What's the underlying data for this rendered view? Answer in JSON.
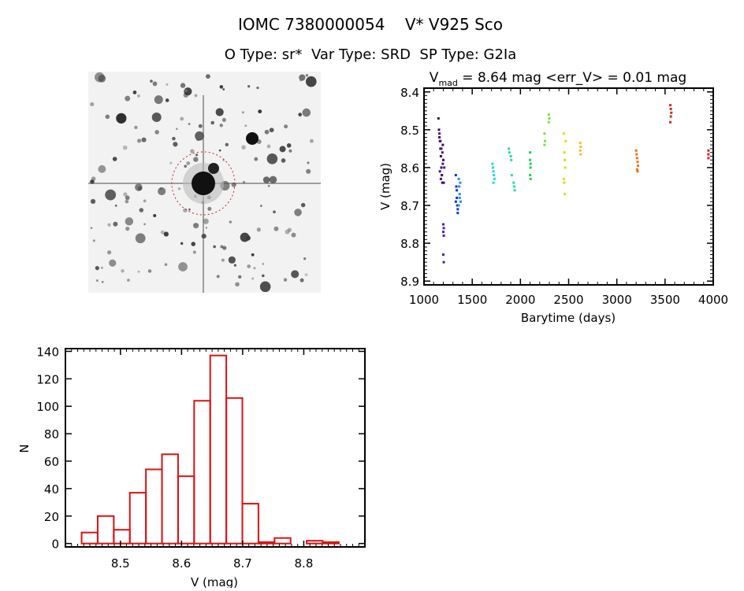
{
  "header": {
    "title": "IOMC 7380000054    V* V925 Sco",
    "subtitle": "O Type: sr*  Var Type: SRD  SP Type: G2Ia"
  },
  "image_panel": {
    "type": "star field finder image",
    "aperture_color": "#cc2222"
  },
  "chart_data": [
    {
      "type": "scatter",
      "title_main": "V",
      "title_sub": "mad",
      "title_rest": " = 8.64 mag <err_V> = 0.01 mag",
      "xlabel": "Barytime (days)",
      "ylabel": "V (mag)",
      "xlim": [
        1000,
        4000
      ],
      "ylim": [
        8.39,
        8.91
      ],
      "y_inverted": true,
      "xticks": [
        1000,
        1500,
        2000,
        2500,
        3000,
        3500,
        4000
      ],
      "yticks": [
        8.4,
        8.5,
        8.6,
        8.7,
        8.8,
        8.9
      ],
      "groups": [
        {
          "t": [
            1150,
            1155,
            1160,
            1165,
            1170,
            1175,
            1180,
            1185,
            1190,
            1195,
            1200
          ],
          "color": "#3b0a66",
          "V": [
            8.47,
            8.5,
            8.52,
            8.53,
            8.55,
            8.57,
            8.6,
            8.62,
            8.64,
            8.54,
            8.58
          ]
        },
        {
          "t": [
            1160,
            1170,
            1180,
            1190,
            1200,
            1210,
            1165,
            1175,
            1185,
            1195,
            1205
          ],
          "color": "#4a148c",
          "V": [
            8.51,
            8.53,
            8.55,
            8.56,
            8.58,
            8.6,
            8.61,
            8.63,
            8.62,
            8.59,
            8.64
          ]
        },
        {
          "t": [
            1200,
            1205,
            1200,
            1205,
            1200,
            1205
          ],
          "color": "#4a20a8",
          "V": [
            8.75,
            8.76,
            8.77,
            8.78,
            8.83,
            8.85
          ]
        },
        {
          "t": [
            1330,
            1335,
            1340,
            1345,
            1350,
            1330,
            1340,
            1350
          ],
          "color": "#1030e0",
          "V": [
            8.62,
            8.65,
            8.68,
            8.7,
            8.72,
            8.69,
            8.66,
            8.71
          ]
        },
        {
          "t": [
            1360,
            1365,
            1370,
            1375,
            1380,
            1360,
            1370
          ],
          "color": "#2090f0",
          "V": [
            8.63,
            8.65,
            8.67,
            8.64,
            8.69,
            8.7,
            8.68
          ]
        },
        {
          "t": [
            1710,
            1715,
            1720,
            1725,
            1730,
            1720
          ],
          "color": "#20d8d0",
          "V": [
            8.59,
            8.6,
            8.61,
            8.62,
            8.63,
            8.64
          ]
        },
        {
          "t": [
            1880,
            1885,
            1900,
            1905,
            1910,
            1930,
            1935,
            1940
          ],
          "color": "#20e0a0",
          "V": [
            8.55,
            8.56,
            8.57,
            8.58,
            8.62,
            8.64,
            8.65,
            8.66
          ]
        },
        {
          "t": [
            2100,
            2100,
            2105,
            2105,
            2100,
            2105
          ],
          "color": "#20d050",
          "V": [
            8.56,
            8.58,
            8.59,
            8.6,
            8.62,
            8.63
          ]
        },
        {
          "t": [
            2250,
            2255,
            2250,
            2295,
            2300,
            2295
          ],
          "color": "#80e040",
          "V": [
            8.51,
            8.53,
            8.54,
            8.46,
            8.47,
            8.48
          ]
        },
        {
          "t": [
            2450,
            2455,
            2460,
            2465,
            2450,
            2455,
            2460,
            2470
          ],
          "color": "#d0e020",
          "V": [
            8.51,
            8.56,
            8.58,
            8.6,
            8.63,
            8.64,
            8.67,
            8.53
          ]
        },
        {
          "t": [
            2620,
            2625,
            2620,
            2625
          ],
          "color": "#f0c020",
          "V": [
            8.535,
            8.545,
            8.555,
            8.565
          ]
        },
        {
          "t": [
            3200,
            3205,
            3210,
            3215,
            3220,
            3210,
            3215
          ],
          "color": "#f07010",
          "V": [
            8.555,
            8.565,
            8.575,
            8.585,
            8.595,
            8.605,
            8.61
          ]
        },
        {
          "t": [
            3555,
            3560,
            3565,
            3560,
            3555
          ],
          "color": "#c83020",
          "V": [
            8.435,
            8.445,
            8.455,
            8.465,
            8.48
          ]
        },
        {
          "t": [
            3950,
            3950,
            3950
          ],
          "color": "#e02020",
          "V": [
            8.555,
            8.565,
            8.575
          ]
        }
      ]
    },
    {
      "type": "bar",
      "subtype": "histogram",
      "xlabel": "V (mag)",
      "ylabel": "N",
      "xlim": [
        8.41,
        8.9
      ],
      "ylim": [
        -2.5,
        142
      ],
      "xticks": [
        8.5,
        8.6,
        8.7,
        8.8
      ],
      "yticks": [
        0,
        20,
        40,
        60,
        80,
        100,
        120,
        140
      ],
      "bin_start": 8.4365,
      "bin_width": 0.0263,
      "counts": [
        8,
        20,
        10,
        37,
        54,
        65,
        49,
        104,
        137,
        106,
        29,
        1,
        4,
        0,
        2,
        1
      ],
      "color": "#dd1111"
    }
  ]
}
